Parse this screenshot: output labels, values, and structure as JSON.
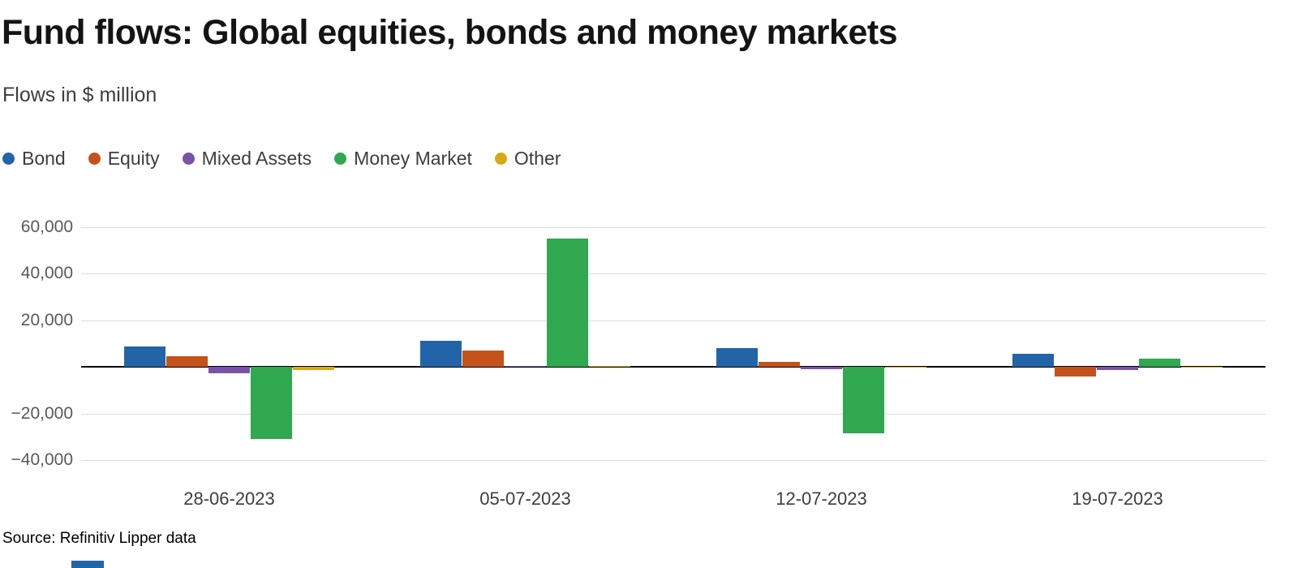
{
  "header": {
    "title": "Fund flows: Global equities, bonds and money markets",
    "subtitle": "Flows in $ million"
  },
  "footer": {
    "source": "Source: Refinitiv Lipper data"
  },
  "accent_color": "#2264a8",
  "chart_data": {
    "type": "bar",
    "title": "Fund flows: Global equities, bonds and money markets",
    "subtitle": "Flows in $ million",
    "value_unit": "$ million",
    "categories": [
      "28-06-2023",
      "05-07-2023",
      "12-07-2023",
      "19-07-2023"
    ],
    "series": [
      {
        "name": "Bond",
        "color": "#2264a8",
        "values": [
          8700,
          11000,
          8000,
          5500
        ]
      },
      {
        "name": "Equity",
        "color": "#c4521a",
        "values": [
          4500,
          7000,
          2000,
          -4000
        ]
      },
      {
        "name": "Mixed Assets",
        "color": "#7a52a8",
        "values": [
          -2800,
          400,
          -1200,
          -1500
        ]
      },
      {
        "name": "Money Market",
        "color": "#2fa84f",
        "values": [
          -31000,
          55000,
          -28500,
          3500
        ]
      },
      {
        "name": "Other",
        "color": "#d8a913",
        "values": [
          -1400,
          300,
          -500,
          -300
        ]
      }
    ],
    "yticks": [
      60000,
      40000,
      20000,
      -20000,
      -40000
    ],
    "ylim": [
      -48000,
      65000
    ],
    "grid": true,
    "zero_line": true,
    "legend_position": "top"
  }
}
